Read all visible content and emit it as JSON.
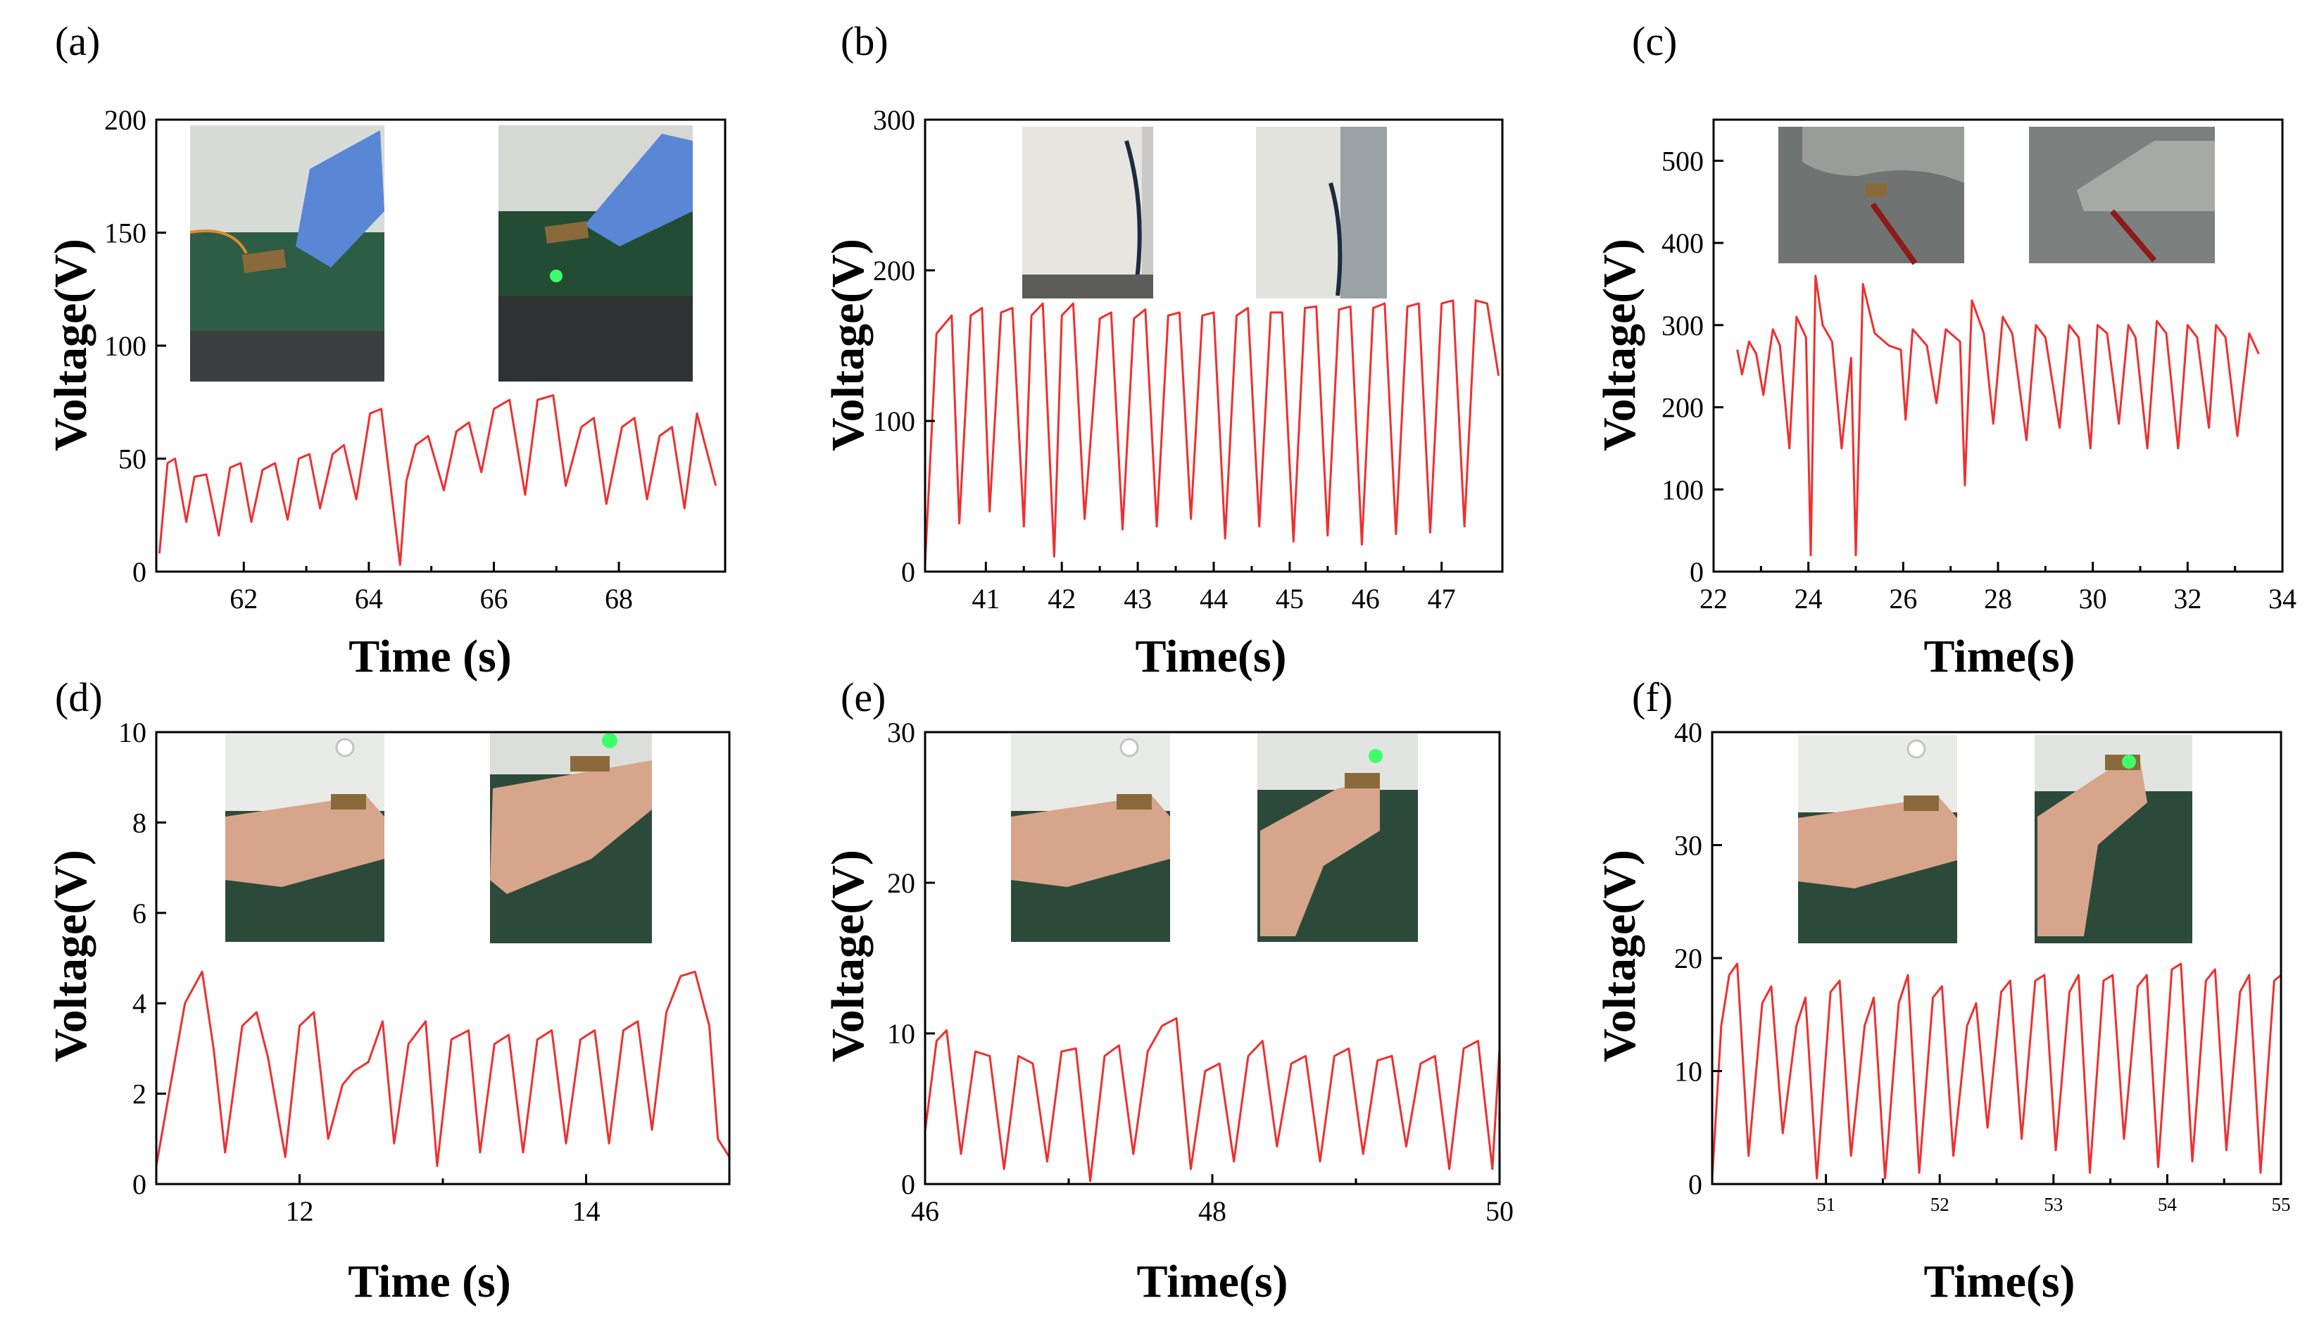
{
  "colors": {
    "trace": "#ee3030",
    "axis": "#000000",
    "background": "#ffffff"
  },
  "chart_data": [
    {
      "id": "a",
      "panel_label": "(a)",
      "type": "line",
      "title": "",
      "xlabel": "Time (s)",
      "ylabel": "Voltage(V)",
      "xlim": [
        60.6,
        69.7
      ],
      "ylim": [
        0,
        200
      ],
      "xticks": [
        62,
        64,
        66,
        68
      ],
      "yticks": [
        0,
        50,
        100,
        150,
        200
      ],
      "xtick_labels": [
        "62",
        "64",
        "66",
        "68"
      ],
      "ytick_labels": [
        "0",
        "50",
        "100",
        "150",
        "200"
      ],
      "inset_photos": [
        "finger-press-photo",
        "finger-release-led-photo"
      ],
      "series": [
        {
          "name": "voltage",
          "x": [
            60.65,
            60.78,
            60.9,
            61.08,
            61.21,
            61.4,
            61.6,
            61.78,
            61.95,
            62.12,
            62.3,
            62.5,
            62.7,
            62.88,
            63.05,
            63.22,
            63.42,
            63.6,
            63.8,
            64.02,
            64.2,
            64.5,
            64.6,
            64.75,
            64.95,
            65.2,
            65.4,
            65.6,
            65.8,
            66.0,
            66.25,
            66.5,
            66.7,
            66.95,
            67.15,
            67.4,
            67.6,
            67.8,
            68.05,
            68.25,
            68.45,
            68.65,
            68.85,
            69.05,
            69.25,
            69.55
          ],
          "y": [
            8,
            48,
            50,
            22,
            42,
            43,
            16,
            46,
            48,
            22,
            45,
            48,
            23,
            50,
            52,
            28,
            52,
            56,
            32,
            70,
            72,
            3,
            40,
            56,
            60,
            36,
            62,
            66,
            44,
            72,
            76,
            34,
            76,
            78,
            38,
            64,
            68,
            30,
            64,
            68,
            32,
            60,
            64,
            28,
            70,
            38
          ]
        }
      ]
    },
    {
      "id": "b",
      "panel_label": "(b)",
      "type": "line",
      "title": "",
      "xlabel": "Time(s)",
      "ylabel": "Voltage(V)",
      "xlim": [
        40.2,
        47.8
      ],
      "ylim": [
        0,
        300
      ],
      "xticks": [
        41,
        42,
        43,
        44,
        45,
        46,
        47
      ],
      "yticks": [
        0,
        100,
        200,
        300
      ],
      "xtick_labels": [
        "41",
        "42",
        "43",
        "44",
        "45",
        "46",
        "47"
      ],
      "ytick_labels": [
        "0",
        "100",
        "200",
        "300"
      ],
      "inset_photos": [
        "arm-swing-photo-1",
        "arm-swing-photo-2"
      ],
      "series": [
        {
          "name": "voltage",
          "x": [
            40.2,
            40.35,
            40.55,
            40.65,
            40.8,
            40.95,
            41.05,
            41.2,
            41.35,
            41.5,
            41.6,
            41.75,
            41.9,
            42.0,
            42.15,
            42.3,
            42.5,
            42.65,
            42.8,
            42.95,
            43.1,
            43.25,
            43.4,
            43.55,
            43.7,
            43.85,
            44.0,
            44.15,
            44.3,
            44.45,
            44.6,
            44.75,
            44.9,
            45.05,
            45.2,
            45.35,
            45.5,
            45.65,
            45.8,
            45.95,
            46.1,
            46.25,
            46.4,
            46.55,
            46.7,
            46.85,
            47.0,
            47.15,
            47.3,
            47.45,
            47.6,
            47.75
          ],
          "y": [
            5,
            158,
            170,
            32,
            170,
            175,
            40,
            172,
            175,
            30,
            170,
            178,
            10,
            170,
            178,
            35,
            168,
            172,
            28,
            168,
            174,
            30,
            170,
            172,
            35,
            170,
            172,
            22,
            170,
            175,
            30,
            172,
            172,
            20,
            175,
            176,
            24,
            174,
            176,
            18,
            175,
            178,
            25,
            176,
            178,
            26,
            178,
            180,
            30,
            180,
            178,
            130
          ]
        }
      ]
    },
    {
      "id": "c",
      "panel_label": "(c)",
      "type": "line",
      "title": "",
      "xlabel": "Time(s)",
      "ylabel": "Voltage(V)",
      "xlim": [
        22,
        34
      ],
      "ylim": [
        0,
        550
      ],
      "xticks": [
        22,
        24,
        26,
        28,
        30,
        32,
        34
      ],
      "yticks": [
        0,
        100,
        200,
        300,
        400,
        500
      ],
      "xtick_labels": [
        "22",
        "24",
        "26",
        "28",
        "30",
        "32",
        "34"
      ],
      "ytick_labels": [
        "0",
        "100",
        "200",
        "300",
        "400",
        "500"
      ],
      "inset_photos": [
        "shoe-lifted-photo",
        "shoe-stepping-photo"
      ],
      "series": [
        {
          "name": "voltage",
          "x": [
            22.5,
            22.6,
            22.75,
            22.9,
            23.05,
            23.25,
            23.4,
            23.6,
            23.75,
            23.95,
            24.05,
            24.15,
            24.3,
            24.5,
            24.7,
            24.9,
            25.0,
            25.15,
            25.4,
            25.7,
            25.95,
            26.05,
            26.2,
            26.5,
            26.7,
            26.9,
            27.2,
            27.3,
            27.45,
            27.7,
            27.9,
            28.1,
            28.3,
            28.6,
            28.8,
            29.0,
            29.3,
            29.5,
            29.7,
            29.95,
            30.1,
            30.3,
            30.55,
            30.75,
            30.9,
            31.15,
            31.35,
            31.55,
            31.8,
            32.0,
            32.2,
            32.45,
            32.6,
            32.8,
            33.05,
            33.3,
            33.5
          ],
          "y": [
            270,
            240,
            280,
            265,
            215,
            295,
            275,
            150,
            310,
            285,
            20,
            360,
            300,
            280,
            150,
            260,
            20,
            350,
            290,
            275,
            270,
            185,
            295,
            275,
            205,
            295,
            280,
            105,
            330,
            290,
            180,
            310,
            290,
            160,
            300,
            285,
            175,
            300,
            285,
            150,
            300,
            290,
            180,
            300,
            285,
            150,
            305,
            290,
            150,
            300,
            285,
            175,
            300,
            285,
            165,
            290,
            265
          ]
        }
      ]
    },
    {
      "id": "d",
      "panel_label": "(d)",
      "type": "line",
      "title": "",
      "xlabel": "Time (s)",
      "ylabel": "Voltage(V)",
      "xlim": [
        11,
        15
      ],
      "ylim": [
        0,
        10
      ],
      "xticks": [
        12,
        14
      ],
      "yticks": [
        0,
        2,
        4,
        6,
        8,
        10
      ],
      "xtick_labels": [
        "12",
        "14"
      ],
      "ytick_labels": [
        "0",
        "2",
        "4",
        "6",
        "8",
        "10"
      ],
      "inset_photos": [
        "wrist-flat-photo",
        "wrist-bent-led-photo"
      ],
      "series": [
        {
          "name": "voltage",
          "x": [
            11.0,
            11.1,
            11.2,
            11.32,
            11.4,
            11.48,
            11.6,
            11.7,
            11.78,
            11.9,
            12.0,
            12.1,
            12.2,
            12.3,
            12.38,
            12.48,
            12.58,
            12.66,
            12.76,
            12.88,
            12.96,
            13.06,
            13.18,
            13.26,
            13.36,
            13.46,
            13.56,
            13.66,
            13.76,
            13.86,
            13.96,
            14.06,
            14.16,
            14.26,
            14.36,
            14.46,
            14.56,
            14.66,
            14.76,
            14.86,
            14.92,
            15.0
          ],
          "y": [
            0.4,
            2.2,
            4.0,
            4.7,
            3.0,
            0.7,
            3.5,
            3.8,
            2.8,
            0.6,
            3.5,
            3.8,
            1.0,
            2.2,
            2.5,
            2.7,
            3.6,
            0.9,
            3.1,
            3.6,
            0.4,
            3.2,
            3.4,
            0.7,
            3.1,
            3.3,
            0.7,
            3.2,
            3.4,
            0.9,
            3.2,
            3.4,
            0.9,
            3.4,
            3.6,
            1.2,
            3.8,
            4.6,
            4.7,
            3.5,
            1.0,
            0.6
          ]
        }
      ]
    },
    {
      "id": "e",
      "panel_label": "(e)",
      "type": "line",
      "title": "",
      "xlabel": "Time(s)",
      "ylabel": "Voltage(V)",
      "xlim": [
        46,
        50
      ],
      "ylim": [
        0,
        30
      ],
      "xticks": [
        46,
        48,
        50
      ],
      "yticks": [
        0,
        10,
        20,
        30
      ],
      "xtick_labels": [
        "46",
        "48",
        "50"
      ],
      "ytick_labels": [
        "0",
        "10",
        "20",
        "30"
      ],
      "inset_photos": [
        "wrist-flat-photo-2",
        "wrist-curled-led-photo"
      ],
      "series": [
        {
          "name": "voltage",
          "x": [
            46.0,
            46.08,
            46.15,
            46.25,
            46.35,
            46.45,
            46.55,
            46.65,
            46.75,
            46.85,
            46.95,
            47.05,
            47.15,
            47.25,
            47.35,
            47.45,
            47.55,
            47.65,
            47.75,
            47.85,
            47.95,
            48.05,
            48.15,
            48.25,
            48.35,
            48.45,
            48.55,
            48.65,
            48.75,
            48.85,
            48.95,
            49.05,
            49.15,
            49.25,
            49.35,
            49.45,
            49.55,
            49.65,
            49.75,
            49.85,
            49.95,
            50.0
          ],
          "y": [
            3.5,
            9.5,
            10.2,
            2.0,
            8.8,
            8.5,
            1.0,
            8.5,
            8.0,
            1.5,
            8.8,
            9.0,
            0.2,
            8.5,
            9.2,
            2.0,
            8.8,
            10.5,
            11.0,
            1.0,
            7.5,
            8.0,
            1.5,
            8.5,
            9.5,
            2.5,
            8.0,
            8.5,
            1.5,
            8.5,
            9.0,
            2.0,
            8.2,
            8.5,
            2.5,
            8.0,
            8.5,
            1.0,
            9.0,
            9.5,
            1.0,
            9.0
          ]
        }
      ]
    },
    {
      "id": "f",
      "panel_label": "(f)",
      "type": "line",
      "title": "",
      "xlabel": "Time(s)",
      "ylabel": "Voltage(V)",
      "xlim": [
        50.0,
        55.0
      ],
      "ylim": [
        0,
        40
      ],
      "xticks": [
        51,
        52,
        53,
        54,
        55
      ],
      "yticks": [
        0,
        10,
        20,
        30,
        40
      ],
      "xtick_labels": [
        "51",
        "52",
        "53",
        "54",
        "55"
      ],
      "ytick_labels": [
        "0",
        "10",
        "20",
        "30",
        "40"
      ],
      "inset_photos": [
        "wrist-flat-photo-3",
        "wrist-curled-led-photo-2"
      ],
      "series": [
        {
          "name": "voltage",
          "x": [
            50.0,
            50.08,
            50.15,
            50.22,
            50.32,
            50.44,
            50.52,
            50.62,
            50.74,
            50.82,
            50.92,
            51.04,
            51.12,
            51.22,
            51.34,
            51.42,
            51.52,
            51.64,
            51.72,
            51.82,
            51.94,
            52.02,
            52.12,
            52.24,
            52.32,
            52.42,
            52.54,
            52.62,
            52.72,
            52.84,
            52.92,
            53.02,
            53.14,
            53.22,
            53.32,
            53.44,
            53.52,
            53.62,
            53.74,
            53.82,
            53.92,
            54.04,
            54.12,
            54.22,
            54.34,
            54.42,
            54.52,
            54.64,
            54.72,
            54.82,
            54.94,
            55.0
          ],
          "y": [
            0.5,
            14,
            18.5,
            19.5,
            2.5,
            16,
            17.5,
            4.5,
            14,
            16.5,
            0.5,
            17,
            18,
            2.5,
            14,
            16.5,
            0.5,
            16,
            18.5,
            1.0,
            16.5,
            17.5,
            2.5,
            14,
            16,
            5.0,
            17,
            18,
            4.0,
            18,
            18.5,
            3.0,
            17,
            18.5,
            1.0,
            18,
            18.5,
            4.0,
            17.5,
            18.5,
            1.5,
            19,
            19.5,
            2.0,
            18,
            19,
            3.0,
            17,
            18.5,
            1.0,
            18,
            18.5
          ]
        }
      ]
    }
  ]
}
